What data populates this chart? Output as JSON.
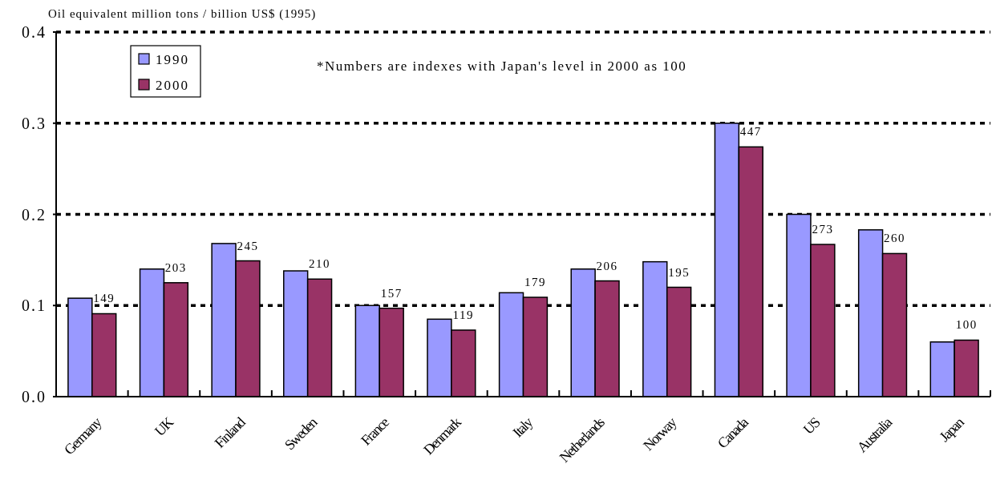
{
  "chart_data": {
    "type": "bar",
    "ylabel": "Oil equivalent million tons / billion US$ (1995)",
    "categories": [
      "Germany",
      "UK",
      "Finland",
      "Sweden",
      "France",
      "Denmark",
      "Italy",
      "Netherlands",
      "Norway",
      "Canada",
      "US",
      "Australia",
      "Japan"
    ],
    "series": [
      {
        "name": "1990",
        "color": "#9999ff",
        "values": [
          0.108,
          0.14,
          0.168,
          0.138,
          0.1,
          0.085,
          0.114,
          0.14,
          0.148,
          0.3,
          0.2,
          0.183,
          0.06
        ]
      },
      {
        "name": "2000",
        "color": "#993366",
        "values": [
          0.091,
          0.125,
          0.149,
          0.129,
          0.097,
          0.073,
          0.109,
          0.127,
          0.12,
          0.274,
          0.167,
          0.157,
          0.062
        ]
      }
    ],
    "ylim": [
      0,
      0.4
    ],
    "yticks": [
      {
        "value": 0,
        "label": "0.0"
      },
      0.1,
      0.2,
      0.3,
      0.4
    ],
    "grid": "y",
    "legend": "top left",
    "annotations": [
      "*Numbers are indexes with Japan's level in 2000 as 100",
      {
        "text": "149",
        "x": "Germany",
        "y": 0.091
      },
      {
        "text": "203",
        "x": "UK",
        "y": 0.125
      },
      {
        "text": "245",
        "x": "Finland",
        "y": 0.149
      },
      {
        "text": "210",
        "x": "Sweden",
        "y": 0.129
      },
      {
        "text": "157",
        "x": "France",
        "y": 0.097
      },
      {
        "text": "119",
        "x": "Denmark",
        "y": 0.073
      },
      {
        "text": "179",
        "x": "Italy",
        "y": 0.109
      },
      {
        "text": "206",
        "x": "Netherlands",
        "y": 0.127
      },
      {
        "text": "195",
        "x": "Norway",
        "y": 0.12
      },
      {
        "text": "447",
        "x": "Canada",
        "y": 0.274
      },
      {
        "text": "273",
        "x": "US",
        "y": 0.167
      },
      {
        "text": "260",
        "x": "Australia",
        "y": 0.157
      },
      {
        "text": "100",
        "x": "Japan",
        "y": 0.062
      }
    ]
  }
}
